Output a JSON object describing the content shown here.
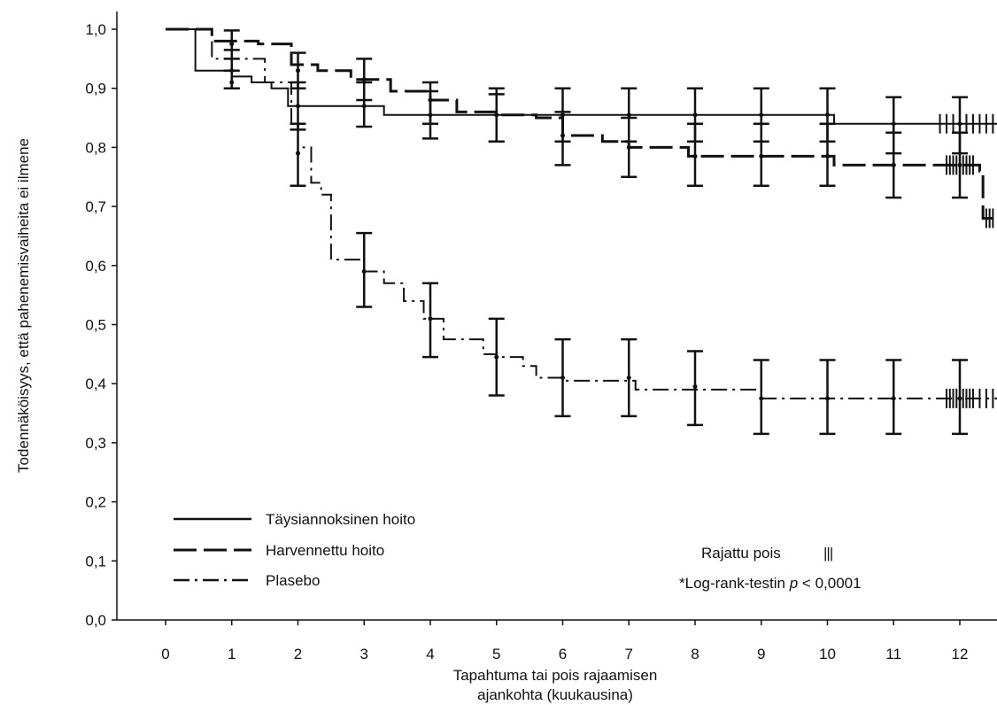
{
  "chart_data": {
    "type": "line",
    "subtype": "kaplan-meier",
    "title": "",
    "xlabel_line1": "Tapahtuma tai pois rajaamisen",
    "xlabel_line2": "ajankohta (kuukausina)",
    "ylabel": "Todennäköisyys, että pahenemisvaiheita ei ilmene",
    "xlim": [
      -0.75,
      12.75
    ],
    "ylim": [
      0,
      1.0
    ],
    "x_ticks": [
      0,
      1,
      2,
      3,
      4,
      5,
      6,
      7,
      8,
      9,
      10,
      11,
      12
    ],
    "x_tick_labels": [
      "0",
      "1",
      "2",
      "3",
      "4",
      "5",
      "6",
      "7",
      "8",
      "9",
      "10",
      "11",
      "12"
    ],
    "y_ticks": [
      0,
      0.1,
      0.2,
      0.3,
      0.4,
      0.5,
      0.6,
      0.7,
      0.8,
      0.9,
      1.0
    ],
    "y_tick_labels": [
      "0,0",
      "0,1",
      "0,2",
      "0,3",
      "0,4",
      "0,5",
      "0,6",
      "0,7",
      "0,8",
      "0,9",
      "1,0"
    ],
    "grid": false,
    "legend_position": "bottom-left",
    "series": [
      {
        "name": "Täysiannoksinen hoito",
        "line_style": "solid",
        "color": "#111111",
        "steps": [
          [
            0,
            1.0
          ],
          [
            0.45,
            0.93
          ],
          [
            1.0,
            0.92
          ],
          [
            1.3,
            0.91
          ],
          [
            1.6,
            0.9
          ],
          [
            1.85,
            0.87
          ],
          [
            3.3,
            0.855
          ],
          [
            4.3,
            0.855
          ],
          [
            5.0,
            0.855
          ],
          [
            6.0,
            0.855
          ],
          [
            10.0,
            0.855
          ],
          [
            10.1,
            0.84
          ],
          [
            12.8,
            0.84
          ]
        ],
        "error_bars": [
          {
            "x": 1,
            "y": 0.93,
            "lo": 0.9,
            "hi": 0.965
          },
          {
            "x": 2,
            "y": 0.87,
            "lo": 0.83,
            "hi": 0.91
          },
          {
            "x": 3,
            "y": 0.87,
            "lo": 0.835,
            "hi": 0.91
          },
          {
            "x": 4,
            "y": 0.855,
            "lo": 0.815,
            "hi": 0.895
          },
          {
            "x": 5,
            "y": 0.855,
            "lo": 0.81,
            "hi": 0.89
          },
          {
            "x": 6,
            "y": 0.855,
            "lo": 0.81,
            "hi": 0.9
          },
          {
            "x": 7,
            "y": 0.855,
            "lo": 0.81,
            "hi": 0.9
          },
          {
            "x": 8,
            "y": 0.855,
            "lo": 0.81,
            "hi": 0.9
          },
          {
            "x": 9,
            "y": 0.855,
            "lo": 0.81,
            "hi": 0.9
          },
          {
            "x": 10,
            "y": 0.855,
            "lo": 0.81,
            "hi": 0.9
          },
          {
            "x": 11,
            "y": 0.84,
            "lo": 0.79,
            "hi": 0.885
          },
          {
            "x": 12,
            "y": 0.84,
            "lo": 0.79,
            "hi": 0.885
          }
        ],
        "censored": [
          11.7,
          11.8,
          11.9,
          12.0,
          12.1,
          12.2,
          12.3,
          12.4,
          12.5,
          12.6,
          12.7
        ]
      },
      {
        "name": "Harvennettu hoito",
        "line_style": "dashed",
        "color": "#111111",
        "steps": [
          [
            0,
            1.0
          ],
          [
            0.7,
            0.98
          ],
          [
            1.4,
            0.975
          ],
          [
            1.9,
            0.94
          ],
          [
            2.3,
            0.93
          ],
          [
            2.8,
            0.915
          ],
          [
            3.4,
            0.895
          ],
          [
            4.0,
            0.88
          ],
          [
            4.4,
            0.86
          ],
          [
            5.0,
            0.855
          ],
          [
            5.6,
            0.85
          ],
          [
            6.0,
            0.82
          ],
          [
            6.6,
            0.81
          ],
          [
            7.0,
            0.8
          ],
          [
            7.9,
            0.785
          ],
          [
            10.0,
            0.785
          ],
          [
            10.1,
            0.77
          ],
          [
            12.3,
            0.76
          ],
          [
            12.35,
            0.68
          ],
          [
            12.8,
            0.68
          ]
        ],
        "error_bars": [
          {
            "x": 1,
            "y": 0.975,
            "lo": 0.95,
            "hi": 0.998
          },
          {
            "x": 2,
            "y": 0.93,
            "lo": 0.9,
            "hi": 0.96
          },
          {
            "x": 3,
            "y": 0.915,
            "lo": 0.88,
            "hi": 0.95
          },
          {
            "x": 4,
            "y": 0.88,
            "lo": 0.84,
            "hi": 0.91
          },
          {
            "x": 5,
            "y": 0.855,
            "lo": 0.81,
            "hi": 0.9
          },
          {
            "x": 6,
            "y": 0.82,
            "lo": 0.77,
            "hi": 0.86
          },
          {
            "x": 7,
            "y": 0.8,
            "lo": 0.75,
            "hi": 0.85
          },
          {
            "x": 8,
            "y": 0.785,
            "lo": 0.735,
            "hi": 0.84
          },
          {
            "x": 9,
            "y": 0.785,
            "lo": 0.735,
            "hi": 0.84
          },
          {
            "x": 10,
            "y": 0.785,
            "lo": 0.735,
            "hi": 0.84
          },
          {
            "x": 11,
            "y": 0.77,
            "lo": 0.715,
            "hi": 0.825
          },
          {
            "x": 12,
            "y": 0.77,
            "lo": 0.715,
            "hi": 0.825
          }
        ],
        "censored": [
          11.8,
          11.85,
          11.9,
          11.95,
          12.0,
          12.05,
          12.1,
          12.15,
          12.2,
          12.4,
          12.45,
          12.5
        ]
      },
      {
        "name": "Plasebo",
        "line_style": "dashdot",
        "color": "#111111",
        "steps": [
          [
            0,
            1.0
          ],
          [
            0.7,
            0.95
          ],
          [
            1.5,
            0.91
          ],
          [
            1.9,
            0.83
          ],
          [
            2.0,
            0.8
          ],
          [
            2.2,
            0.74
          ],
          [
            2.35,
            0.72
          ],
          [
            2.5,
            0.61
          ],
          [
            3.0,
            0.59
          ],
          [
            3.3,
            0.57
          ],
          [
            3.6,
            0.54
          ],
          [
            3.9,
            0.51
          ],
          [
            4.2,
            0.475
          ],
          [
            4.8,
            0.45
          ],
          [
            5.0,
            0.445
          ],
          [
            5.4,
            0.43
          ],
          [
            5.6,
            0.41
          ],
          [
            6.0,
            0.405
          ],
          [
            7.0,
            0.405
          ],
          [
            7.1,
            0.39
          ],
          [
            9.0,
            0.375
          ],
          [
            12.8,
            0.375
          ]
        ],
        "error_bars": [
          {
            "x": 1,
            "y": 0.91,
            "lo": 0.9,
            "hi": 0.93
          },
          {
            "x": 2,
            "y": 0.79,
            "lo": 0.735,
            "hi": 0.84
          },
          {
            "x": 3,
            "y": 0.59,
            "lo": 0.53,
            "hi": 0.655
          },
          {
            "x": 4,
            "y": 0.51,
            "lo": 0.445,
            "hi": 0.57
          },
          {
            "x": 5,
            "y": 0.445,
            "lo": 0.38,
            "hi": 0.51
          },
          {
            "x": 6,
            "y": 0.41,
            "lo": 0.345,
            "hi": 0.475
          },
          {
            "x": 7,
            "y": 0.41,
            "lo": 0.345,
            "hi": 0.475
          },
          {
            "x": 8,
            "y": 0.395,
            "lo": 0.33,
            "hi": 0.455
          },
          {
            "x": 9,
            "y": 0.375,
            "lo": 0.315,
            "hi": 0.44
          },
          {
            "x": 10,
            "y": 0.375,
            "lo": 0.315,
            "hi": 0.44
          },
          {
            "x": 11,
            "y": 0.375,
            "lo": 0.315,
            "hi": 0.44
          },
          {
            "x": 12,
            "y": 0.375,
            "lo": 0.315,
            "hi": 0.44
          }
        ],
        "censored": [
          11.8,
          11.85,
          11.9,
          11.95,
          12.0,
          12.05,
          12.1,
          12.15,
          12.2,
          12.3,
          12.4,
          12.5,
          12.6,
          12.7
        ]
      }
    ],
    "annotations": {
      "censored_label": "Rajattu pois",
      "censored_symbol": "|||",
      "logrank_prefix": "*Log-rank-testin ",
      "logrank_p": "p",
      "logrank_suffix": " < 0,0001"
    }
  }
}
